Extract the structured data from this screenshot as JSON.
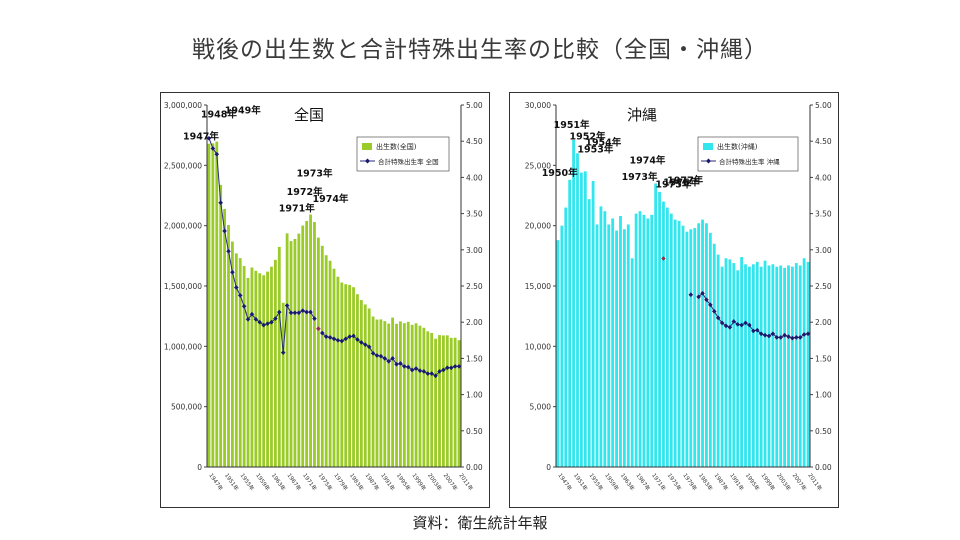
{
  "page": {
    "title": "戦後の出生数と合計特殊出生率の比較（全国・沖縄）",
    "source": "資料：衛生統計年報"
  },
  "colors": {
    "national_bar": "#9acb28",
    "okinawa_bar": "#33e6ee",
    "rate_line": "#2b2b7a",
    "rate_marker": "#1a1a6e",
    "highlight_marker": "#9b2a4a"
  },
  "chart_data": [
    {
      "type": "bar",
      "panel_title": "全国",
      "bar_series_name": "出生数(全国)",
      "line_series_name": "合計特殊出生率 全国",
      "ylim": [
        0,
        3000000
      ],
      "y_ticks": [
        "0",
        "500,000",
        "1,000,000",
        "1,500,000",
        "2,000,000",
        "2,500,000",
        "3,000,000"
      ],
      "y2lim": [
        0,
        5
      ],
      "y2_ticks": [
        "0.00",
        "0.50",
        "1.00",
        "1.50",
        "2.00",
        "2.50",
        "3.00",
        "3.50",
        "4.00",
        "4.50",
        "5.00"
      ],
      "x": [
        1947,
        1948,
        1949,
        1950,
        1951,
        1952,
        1953,
        1954,
        1955,
        1956,
        1957,
        1958,
        1959,
        1960,
        1961,
        1962,
        1963,
        1964,
        1965,
        1966,
        1967,
        1968,
        1969,
        1970,
        1971,
        1972,
        1973,
        1974,
        1975,
        1976,
        1977,
        1978,
        1979,
        1980,
        1981,
        1982,
        1983,
        1984,
        1985,
        1986,
        1987,
        1988,
        1989,
        1990,
        1991,
        1992,
        1993,
        1994,
        1995,
        1996,
        1997,
        1998,
        1999,
        2000,
        2001,
        2002,
        2003,
        2004,
        2005,
        2006,
        2007,
        2008,
        2009,
        2010,
        2011
      ],
      "values": [
        2679000,
        2682000,
        2697000,
        2338000,
        2138000,
        2005000,
        1868000,
        1770000,
        1731000,
        1665000,
        1567000,
        1653000,
        1626000,
        1606000,
        1589000,
        1619000,
        1660000,
        1717000,
        1824000,
        1361000,
        1936000,
        1872000,
        1890000,
        1934000,
        2001000,
        2039000,
        2092000,
        2030000,
        1901000,
        1833000,
        1755000,
        1709000,
        1643000,
        1577000,
        1529000,
        1515000,
        1509000,
        1490000,
        1432000,
        1383000,
        1347000,
        1314000,
        1247000,
        1222000,
        1223000,
        1209000,
        1188000,
        1238000,
        1187000,
        1207000,
        1192000,
        1203000,
        1178000,
        1191000,
        1171000,
        1154000,
        1124000,
        1111000,
        1063000,
        1093000,
        1090000,
        1091000,
        1070000,
        1071000,
        1051000
      ],
      "rate": [
        4.54,
        4.4,
        4.32,
        3.65,
        3.26,
        2.98,
        2.69,
        2.48,
        2.37,
        2.22,
        2.04,
        2.11,
        2.04,
        2.0,
        1.96,
        1.98,
        2.0,
        2.05,
        2.14,
        1.58,
        2.23,
        2.13,
        2.13,
        2.13,
        2.16,
        2.14,
        2.14,
        2.05,
        1.91,
        1.85,
        1.8,
        1.79,
        1.77,
        1.75,
        1.74,
        1.77,
        1.8,
        1.81,
        1.76,
        1.72,
        1.69,
        1.66,
        1.57,
        1.54,
        1.53,
        1.5,
        1.46,
        1.5,
        1.42,
        1.43,
        1.39,
        1.38,
        1.34,
        1.36,
        1.33,
        1.32,
        1.29,
        1.29,
        1.26,
        1.32,
        1.34,
        1.37,
        1.37,
        1.39,
        1.39
      ],
      "highlight_index": 28,
      "x_tick_labels": [
        "1947年",
        "1951年",
        "1955年",
        "1959年",
        "1963年",
        "1967年",
        "1971年",
        "1975年",
        "1979年",
        "1983年",
        "1987年",
        "1991年",
        "1995年",
        "1999年",
        "2003年",
        "2007年",
        "2011年"
      ],
      "annotations": [
        {
          "text": "1947年",
          "index": 0
        },
        {
          "text": "1948年",
          "index": 1
        },
        {
          "text": "1949年",
          "index": 2
        },
        {
          "text": "1971年",
          "index": 24
        },
        {
          "text": "1972年",
          "index": 25
        },
        {
          "text": "1973年",
          "index": 26
        },
        {
          "text": "1974年",
          "index": 27
        }
      ]
    },
    {
      "type": "bar",
      "panel_title": "沖縄",
      "bar_series_name": "出生数(沖縄)",
      "line_series_name": "合計特殊出生率 沖縄",
      "ylim": [
        0,
        30000
      ],
      "y_ticks": [
        "0",
        "5,000",
        "10,000",
        "15,000",
        "20,000",
        "25,000",
        "30,000"
      ],
      "y2lim": [
        0,
        5
      ],
      "y2_ticks": [
        "0.00",
        "0.50",
        "1.00",
        "1.50",
        "2.00",
        "2.50",
        "3.00",
        "3.50",
        "4.00",
        "4.50",
        "5.00"
      ],
      "x": [
        1947,
        1948,
        1949,
        1950,
        1951,
        1952,
        1953,
        1954,
        1955,
        1956,
        1957,
        1958,
        1959,
        1960,
        1961,
        1962,
        1963,
        1964,
        1965,
        1966,
        1967,
        1968,
        1969,
        1970,
        1971,
        1972,
        1973,
        1974,
        1975,
        1976,
        1977,
        1978,
        1979,
        1980,
        1981,
        1982,
        1983,
        1984,
        1985,
        1986,
        1987,
        1988,
        1989,
        1990,
        1991,
        1992,
        1993,
        1994,
        1995,
        1996,
        1997,
        1998,
        1999,
        2000,
        2001,
        2002,
        2003,
        2004,
        2005,
        2006,
        2007,
        2008,
        2009,
        2010,
        2011
      ],
      "values": [
        18800,
        20000,
        21500,
        23800,
        27100,
        26000,
        24400,
        24500,
        22200,
        23700,
        20100,
        21600,
        21200,
        20100,
        20600,
        19600,
        20800,
        19700,
        20100,
        17300,
        21000,
        21200,
        20900,
        20600,
        20900,
        23500,
        22800,
        22000,
        21500,
        21000,
        20500,
        20400,
        20000,
        19500,
        19700,
        19800,
        20200,
        20500,
        20200,
        19400,
        18500,
        17600,
        16600,
        17300,
        17200,
        16900,
        16300,
        17400,
        16800,
        16600,
        16800,
        17000,
        16600,
        17100,
        16700,
        16800,
        16600,
        16700,
        16500,
        16700,
        16600,
        16900,
        16700,
        17300,
        17000
      ],
      "rate": [
        null,
        null,
        null,
        null,
        null,
        null,
        null,
        null,
        null,
        null,
        null,
        null,
        null,
        null,
        null,
        null,
        null,
        null,
        null,
        null,
        null,
        null,
        null,
        null,
        null,
        null,
        null,
        2.88,
        null,
        null,
        null,
        null,
        null,
        null,
        2.38,
        null,
        2.35,
        2.4,
        2.31,
        2.24,
        2.15,
        2.06,
        1.99,
        1.95,
        1.93,
        2.01,
        1.97,
        1.96,
        1.99,
        1.96,
        1.88,
        1.89,
        1.84,
        1.82,
        1.81,
        1.84,
        1.79,
        1.79,
        1.82,
        1.8,
        1.78,
        1.79,
        1.79,
        1.83,
        1.84
      ],
      "highlight_index": 27,
      "x_tick_labels": [
        "1947年",
        "1951年",
        "1955年",
        "1959年",
        "1963年",
        "1967年",
        "1971年",
        "1975年",
        "1979年",
        "1983年",
        "1987年",
        "1991年",
        "1995年",
        "1999年",
        "2003年",
        "2007年",
        "2011年"
      ],
      "annotations": [
        {
          "text": "1950年",
          "index": 3
        },
        {
          "text": "1951年",
          "index": 4
        },
        {
          "text": "1952年",
          "index": 5
        },
        {
          "text": "1953年",
          "index": 6
        },
        {
          "text": "1954年",
          "index": 7
        },
        {
          "text": "1973年",
          "index": 26
        },
        {
          "text": "1974年",
          "index": 27
        },
        {
          "text": "1975年",
          "index": 28
        },
        {
          "text": "1976年",
          "index": 29
        },
        {
          "text": "1977年",
          "index": 30
        }
      ]
    }
  ]
}
